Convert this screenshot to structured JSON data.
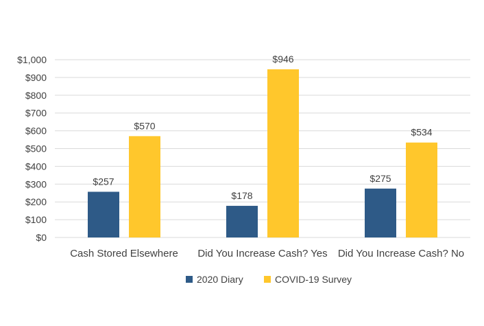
{
  "chart_data": {
    "type": "bar",
    "title": "",
    "xlabel": "",
    "ylabel": "",
    "categories": [
      "Cash Stored Elsewhere",
      "Did You Increase Cash? Yes",
      "Did You Increase Cash? No"
    ],
    "series": [
      {
        "name": "2020 Diary",
        "values": [
          257,
          178,
          275
        ],
        "color": "#2E5A87",
        "labels": [
          "$257",
          "$178",
          "$275"
        ]
      },
      {
        "name": "COVID-19 Survey",
        "values": [
          570,
          946,
          534
        ],
        "color": "#FFC72C",
        "labels": [
          "$570",
          "$946",
          "$534"
        ]
      }
    ],
    "ylim": [
      0,
      1000
    ],
    "yticks": [
      0,
      100,
      200,
      300,
      400,
      500,
      600,
      700,
      800,
      900,
      1000
    ],
    "ytick_labels": [
      "$0",
      "$100",
      "$200",
      "$300",
      "$400",
      "$500",
      "$600",
      "$700",
      "$800",
      "$900",
      "$1,000"
    ],
    "grid": true,
    "gridline_color": "#d9d9d9",
    "legend_position": "bottom"
  }
}
